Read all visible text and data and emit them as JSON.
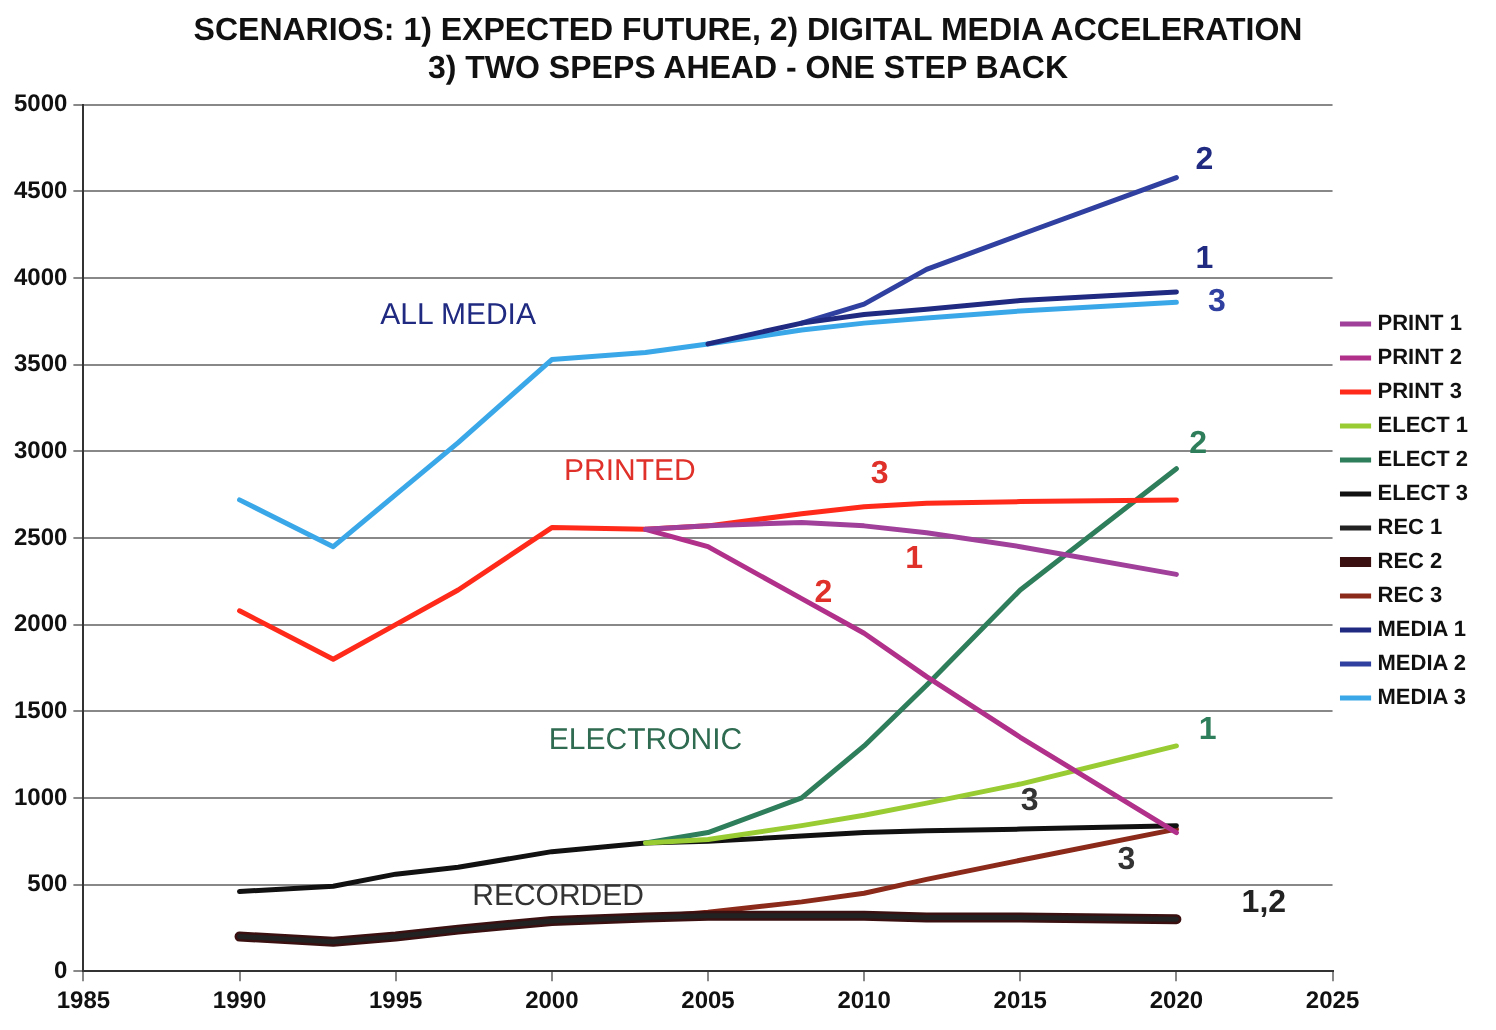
{
  "chart_data": {
    "type": "line",
    "title": "SCENARIOS: 1) EXPECTED FUTURE, 2) DIGITAL MEDIA ACCELERATION",
    "subtitle": "3) TWO SPEPS AHEAD - ONE STEP BACK",
    "x": [
      1990,
      1993,
      1995,
      1997,
      2000,
      2003,
      2005,
      2008,
      2010,
      2012,
      2015,
      2020
    ],
    "series": [
      {
        "name": "PRINT 1",
        "color": "#a0409a",
        "values": [
          null,
          null,
          null,
          null,
          null,
          2550,
          2570,
          2590,
          2570,
          2530,
          2450,
          2290
        ]
      },
      {
        "name": "PRINT 2",
        "color": "#b0308a",
        "values": [
          null,
          null,
          null,
          null,
          null,
          2550,
          2450,
          2150,
          1950,
          1700,
          1350,
          800
        ]
      },
      {
        "name": "PRINT 3",
        "color": "#ff2a1a",
        "values": [
          2080,
          1800,
          2000,
          2200,
          2560,
          2550,
          2570,
          2640,
          2680,
          2700,
          2710,
          2720
        ]
      },
      {
        "name": "ELECT 1",
        "color": "#99cc33",
        "values": [
          null,
          null,
          null,
          null,
          null,
          740,
          760,
          840,
          900,
          970,
          1080,
          1300
        ]
      },
      {
        "name": "ELECT 2",
        "color": "#2e7d5b",
        "values": [
          null,
          null,
          null,
          null,
          null,
          740,
          800,
          1000,
          1300,
          1650,
          2200,
          2900
        ]
      },
      {
        "name": "ELECT 3",
        "color": "#111111",
        "values": [
          460,
          490,
          560,
          600,
          690,
          740,
          750,
          780,
          800,
          810,
          820,
          840
        ]
      },
      {
        "name": "REC 1",
        "color": "#222222",
        "values": [
          200,
          170,
          200,
          240,
          290,
          310,
          320,
          320,
          320,
          310,
          310,
          300
        ]
      },
      {
        "name": "REC 2",
        "color": "#3a1010",
        "values": [
          200,
          170,
          200,
          240,
          290,
          310,
          320,
          320,
          320,
          310,
          310,
          300
        ]
      },
      {
        "name": "REC 3",
        "color": "#8b2a1a",
        "values": [
          null,
          null,
          null,
          null,
          null,
          310,
          340,
          400,
          450,
          530,
          640,
          820
        ]
      },
      {
        "name": "MEDIA 1",
        "color": "#1f2a80",
        "values": [
          null,
          null,
          null,
          null,
          null,
          null,
          3620,
          3740,
          3790,
          3820,
          3870,
          3920
        ]
      },
      {
        "name": "MEDIA 2",
        "color": "#3040a0",
        "values": [
          null,
          null,
          null,
          null,
          null,
          null,
          null,
          3740,
          3850,
          4050,
          4250,
          4580
        ]
      },
      {
        "name": "MEDIA 3",
        "color": "#3aa8e8",
        "values": [
          2720,
          2450,
          2750,
          3050,
          3530,
          3570,
          3620,
          3700,
          3740,
          3770,
          3810,
          3860
        ]
      }
    ],
    "xlim": [
      1985,
      2025
    ],
    "xticks": [
      1985,
      1990,
      1995,
      2000,
      2005,
      2010,
      2015,
      2020,
      2025
    ],
    "ylim": [
      0,
      5000
    ],
    "yticks": [
      0,
      500,
      1000,
      1500,
      2000,
      2500,
      3000,
      3500,
      4000,
      4500,
      5000
    ],
    "grid": "y",
    "legend": "right",
    "marker": "none",
    "line_style": "solid",
    "annotations": [
      "ALL MEDIA",
      "PRINTED",
      "ELECTRONIC",
      "RECORDED",
      "2",
      "1",
      "3",
      "3",
      "1",
      "2",
      "2",
      "1",
      "3",
      "3",
      "1,2"
    ]
  }
}
